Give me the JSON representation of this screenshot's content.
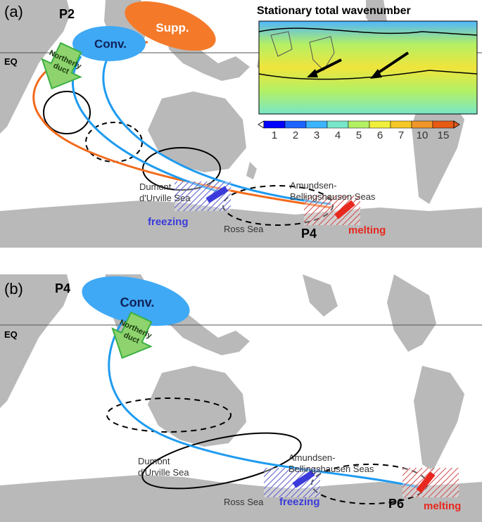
{
  "panel_a": {
    "label": "(a)",
    "phase": "P2",
    "end_phase": "P4",
    "eq": "EQ",
    "conv": "Conv.",
    "supp": "Supp.",
    "duct_line1": "Northerly",
    "duct_line2": "duct",
    "dumont_line1": "Dumont",
    "dumont_line2": "d'Urville Sea",
    "amundsen_line1": "Amundsen-",
    "amundsen_line2": "Bellingshausen Seas",
    "ross": "Ross Sea",
    "freezing": "freezing",
    "melting": "melting"
  },
  "inset": {
    "title": "Stationary total wavenumber",
    "colorbar_ticks": [
      "1",
      "2",
      "3",
      "4",
      "5",
      "6",
      "7",
      "10",
      "15"
    ],
    "colorbar_colors": [
      "#0000ff",
      "#1e64ff",
      "#3cb4ff",
      "#78e6c8",
      "#b4f064",
      "#f0f03c",
      "#f5c828",
      "#f09628",
      "#e65a14"
    ]
  },
  "panel_b": {
    "label": "(b)",
    "phase": "P4",
    "end_phase": "P6",
    "eq": "EQ",
    "conv": "Conv.",
    "duct_line1": "Northerly",
    "duct_line2": "duct",
    "dumont_line1": "Dumont",
    "dumont_line2": "d'Urville Sea",
    "amundsen_line1": "Amundsen-",
    "amundsen_line2": "Bellingshausen Seas",
    "ross": "Ross Sea",
    "freezing": "freezing",
    "melting": "melting"
  },
  "colors": {
    "land": "#b9b9b9",
    "conv": "#3fa9f5",
    "supp": "#f47a2a",
    "duct": "#8ed36e",
    "duct_edge": "#3cb043",
    "ray_blue": "#1f9bf0",
    "ray_orange": "#f26a1b",
    "freezing": "#3b3bdc",
    "melting": "#e8281e"
  }
}
